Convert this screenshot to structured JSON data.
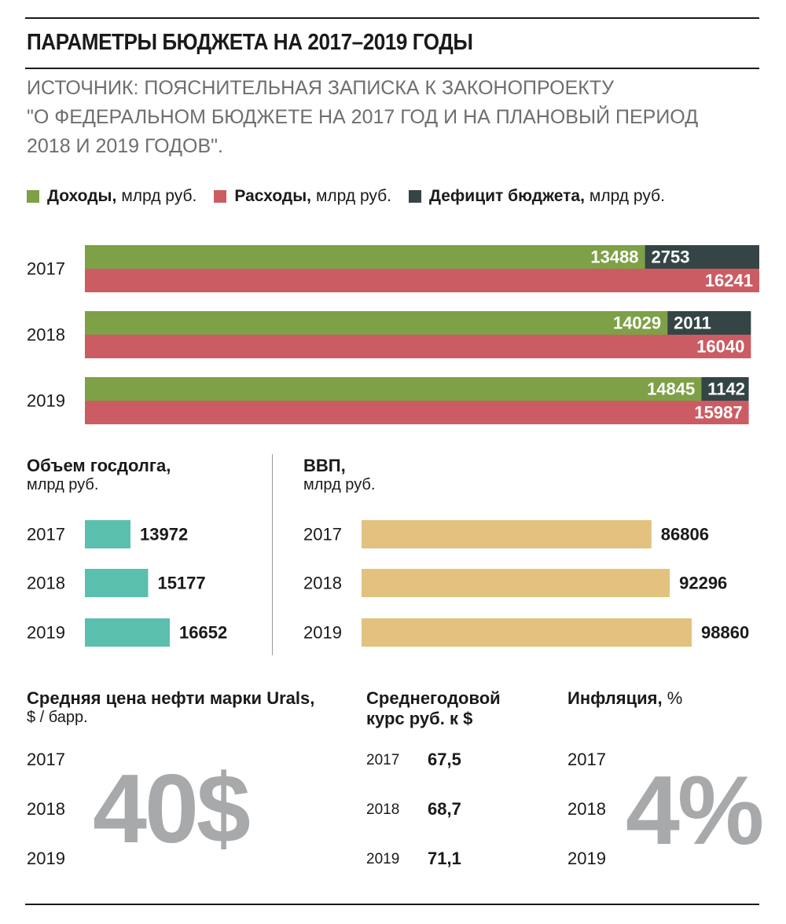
{
  "title": "ПАРАМЕТРЫ БЮДЖЕТА НА 2017–2019 ГОДЫ",
  "source": "ИСТОЧНИК: ПОЯСНИТЕЛЬНАЯ ЗАПИСКА К ЗАКОНОПРОЕКТУ\n\"О ФЕДЕРАЛЬНОМ БЮДЖЕТЕ НА 2017 ГОД И НА ПЛАНОВЫЙ ПЕРИОД\n2018 И 2019 ГОДОВ\".",
  "legend": [
    {
      "name": "Доходы,",
      "unit": "млрд руб.",
      "color": "#7ea046"
    },
    {
      "name": "Расходы,",
      "unit": "млрд руб.",
      "color": "#cc5c64"
    },
    {
      "name": "Дефицит бюджета,",
      "unit": "млрд руб.",
      "color": "#354545"
    }
  ],
  "chart_data": [
    {
      "type": "bar",
      "categories": [
        "2017",
        "2018",
        "2019"
      ],
      "series": [
        {
          "name": "Доходы",
          "values": [
            13488,
            14029,
            14845
          ]
        },
        {
          "name": "Дефицит бюджета",
          "values": [
            2753,
            2011,
            1142
          ]
        },
        {
          "name": "Расходы",
          "values": [
            16241,
            16040,
            15987
          ]
        }
      ],
      "legend_placement": "top",
      "grid": false
    },
    {
      "type": "bar",
      "title": "Объем госдолга,",
      "ylabel": "млрд руб.",
      "categories": [
        "2017",
        "2018",
        "2019"
      ],
      "values": [
        13972,
        15177,
        16652
      ],
      "grid": false
    },
    {
      "type": "bar",
      "title": "ВВП,",
      "ylabel": "млрд руб.",
      "categories": [
        "2017",
        "2018",
        "2019"
      ],
      "values": [
        86806,
        92296,
        98860
      ],
      "grid": false
    },
    {
      "type": "table",
      "title": "Среднегодовой курс руб. к $",
      "categories": [
        "2017",
        "2018",
        "2019"
      ],
      "values": [
        "67,5",
        "68,7",
        "71,1"
      ]
    }
  ],
  "colors": {
    "income": "#7ea046",
    "expense": "#cc5c64",
    "deficit": "#354545",
    "debt": "#5bbfae",
    "gdp": "#e2c27e",
    "big_number": "#a7a9ab"
  },
  "debt": {
    "title": "Объем госдолга,",
    "unit": "млрд руб."
  },
  "gdp": {
    "title": "ВВП,",
    "unit": "млрд руб."
  },
  "oil": {
    "title": "Средняя цена нефти марки Urals,",
    "unit": "$ / барр.",
    "years": [
      "2017",
      "2018",
      "2019"
    ],
    "value": "40$"
  },
  "rate": {
    "title_line1": "Среднегодовой",
    "title_line2": "курс руб. к $",
    "years": [
      "2017",
      "2018",
      "2019"
    ],
    "values": [
      "67,5",
      "68,7",
      "71,1"
    ]
  },
  "inflation": {
    "title": "Инфляция,",
    "unit": "%",
    "years": [
      "2017",
      "2018",
      "2019"
    ],
    "value": "4%"
  }
}
